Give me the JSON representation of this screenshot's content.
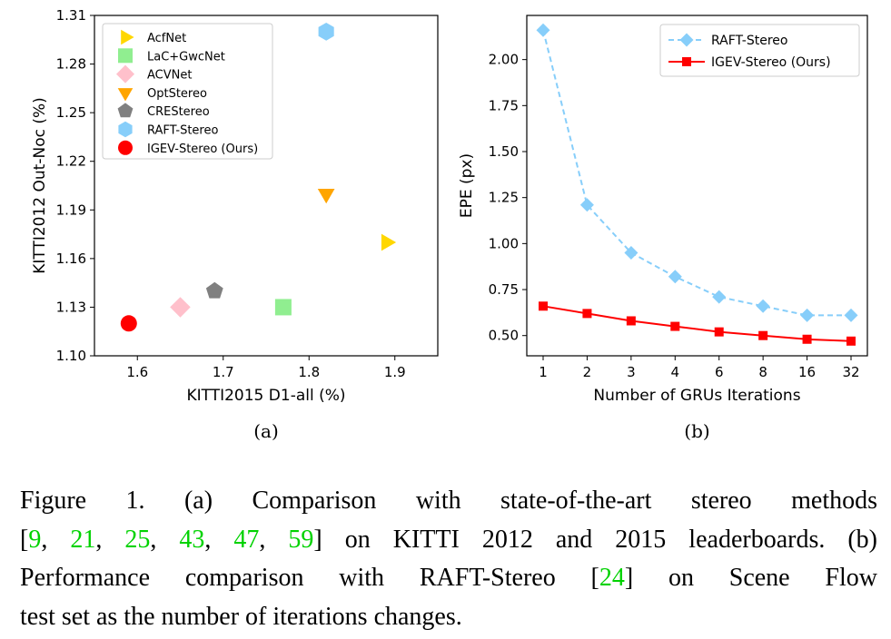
{
  "chart_data": [
    {
      "type": "scatter",
      "xlabel": "KITTI2015 D1-all (%)",
      "ylabel": "KITTI2012 Out-Noc (%)",
      "xlim": [
        1.55,
        1.95
      ],
      "ylim": [
        1.1,
        1.31
      ],
      "xticks": [
        "1.6",
        "1.7",
        "1.8",
        "1.9"
      ],
      "yticks": [
        "1.10",
        "1.13",
        "1.16",
        "1.19",
        "1.22",
        "1.25",
        "1.28",
        "1.31"
      ],
      "legend_position": "top-left",
      "series": [
        {
          "name": "AcfNet",
          "x": 1.89,
          "y": 1.17,
          "marker": "triangle-right",
          "color": "#ffd700"
        },
        {
          "name": "LaC+GwcNet",
          "x": 1.77,
          "y": 1.13,
          "marker": "square",
          "color": "#90ee90"
        },
        {
          "name": "ACVNet",
          "x": 1.65,
          "y": 1.13,
          "marker": "diamond",
          "color": "#ffc0cb"
        },
        {
          "name": "OptStereo",
          "x": 1.82,
          "y": 1.2,
          "marker": "triangle-down",
          "color": "#ffa500"
        },
        {
          "name": "CREStereo",
          "x": 1.69,
          "y": 1.14,
          "marker": "pentagon",
          "color": "#808080"
        },
        {
          "name": "RAFT-Stereo",
          "x": 1.82,
          "y": 1.3,
          "marker": "hexagon",
          "color": "#87cefa"
        },
        {
          "name": "IGEV-Stereo (Ours)",
          "x": 1.59,
          "y": 1.12,
          "marker": "circle",
          "color": "#ff0000"
        }
      ],
      "sublabel": "(a)"
    },
    {
      "type": "line",
      "xlabel": "Number of GRUs Iterations",
      "ylabel": "EPE (px)",
      "categories": [
        "1",
        "2",
        "3",
        "4",
        "6",
        "8",
        "16",
        "32"
      ],
      "ylim": [
        0.39,
        2.24
      ],
      "yticks": [
        "0.50",
        "0.75",
        "1.00",
        "1.25",
        "1.50",
        "1.75",
        "2.00"
      ],
      "legend_position": "top-right",
      "series": [
        {
          "name": "RAFT-Stereo",
          "values": [
            2.16,
            1.21,
            0.95,
            0.82,
            0.71,
            0.66,
            0.61,
            0.61
          ],
          "color": "#87cefa",
          "marker": "diamond",
          "dashed": true
        },
        {
          "name": "IGEV-Stereo (Ours)",
          "values": [
            0.66,
            0.62,
            0.58,
            0.55,
            0.52,
            0.5,
            0.48,
            0.47
          ],
          "color": "#ff0000",
          "marker": "square",
          "dashed": false
        }
      ],
      "sublabel": "(b)"
    }
  ],
  "caption": {
    "lines": [
      [
        {
          "t": "Figure 1.  (a) Comparison with state-of-the-art stereo methods"
        }
      ],
      [
        {
          "t": "["
        },
        {
          "t": "9",
          "ref": true
        },
        {
          "t": ", "
        },
        {
          "t": "21",
          "ref": true
        },
        {
          "t": ", "
        },
        {
          "t": "25",
          "ref": true
        },
        {
          "t": ", "
        },
        {
          "t": "43",
          "ref": true
        },
        {
          "t": ", "
        },
        {
          "t": "47",
          "ref": true
        },
        {
          "t": ", "
        },
        {
          "t": "59",
          "ref": true
        },
        {
          "t": "] on KITTI 2012 and 2015 leaderboards.  (b)"
        }
      ],
      [
        {
          "t": "Performance comparison with RAFT-Stereo ["
        },
        {
          "t": "24",
          "ref": true
        },
        {
          "t": "] on Scene Flow"
        }
      ],
      [
        {
          "t": "test set as the number of iterations changes."
        }
      ]
    ]
  }
}
